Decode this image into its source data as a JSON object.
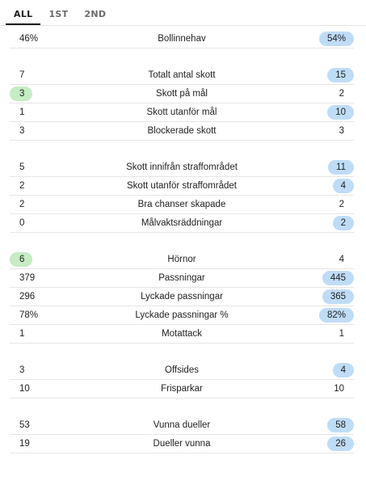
{
  "tabs": [
    {
      "label": "ALL",
      "active": true
    },
    {
      "label": "1ST",
      "active": false
    },
    {
      "label": "2ND",
      "active": false
    }
  ],
  "colors": {
    "highlight_away": "#bfdcf7",
    "highlight_home": "#c6ecc3"
  },
  "groups": [
    [
      {
        "label": "Bollinnehav",
        "home": "46%",
        "away": "54%",
        "highlight": "away"
      }
    ],
    [
      {
        "label": "Totalt antal skott",
        "home": "7",
        "away": "15",
        "highlight": "away"
      },
      {
        "label": "Skott på mål",
        "home": "3",
        "away": "2",
        "highlight": "home"
      },
      {
        "label": "Skott utanför mål",
        "home": "1",
        "away": "10",
        "highlight": "away"
      },
      {
        "label": "Blockerade skott",
        "home": "3",
        "away": "3",
        "highlight": "none"
      }
    ],
    [
      {
        "label": "Skott innifrån straffområdet",
        "home": "5",
        "away": "11",
        "highlight": "away"
      },
      {
        "label": "Skott utanför straffområdet",
        "home": "2",
        "away": "4",
        "highlight": "away"
      },
      {
        "label": "Bra chanser skapade",
        "home": "2",
        "away": "2",
        "highlight": "none"
      },
      {
        "label": "Målvaktsräddningar",
        "home": "0",
        "away": "2",
        "highlight": "away"
      }
    ],
    [
      {
        "label": "Hörnor",
        "home": "6",
        "away": "4",
        "highlight": "home"
      },
      {
        "label": "Passningar",
        "home": "379",
        "away": "445",
        "highlight": "away"
      },
      {
        "label": "Lyckade passningar",
        "home": "296",
        "away": "365",
        "highlight": "away"
      },
      {
        "label": "Lyckade passningar %",
        "home": "78%",
        "away": "82%",
        "highlight": "away"
      },
      {
        "label": "Motattack",
        "home": "1",
        "away": "1",
        "highlight": "none"
      }
    ],
    [
      {
        "label": "Offsides",
        "home": "3",
        "away": "4",
        "highlight": "away"
      },
      {
        "label": "Frisparkar",
        "home": "10",
        "away": "10",
        "highlight": "none"
      }
    ],
    [
      {
        "label": "Vunna dueller",
        "home": "53",
        "away": "58",
        "highlight": "away"
      },
      {
        "label": "Dueller vunna",
        "home": "19",
        "away": "26",
        "highlight": "away"
      }
    ]
  ]
}
